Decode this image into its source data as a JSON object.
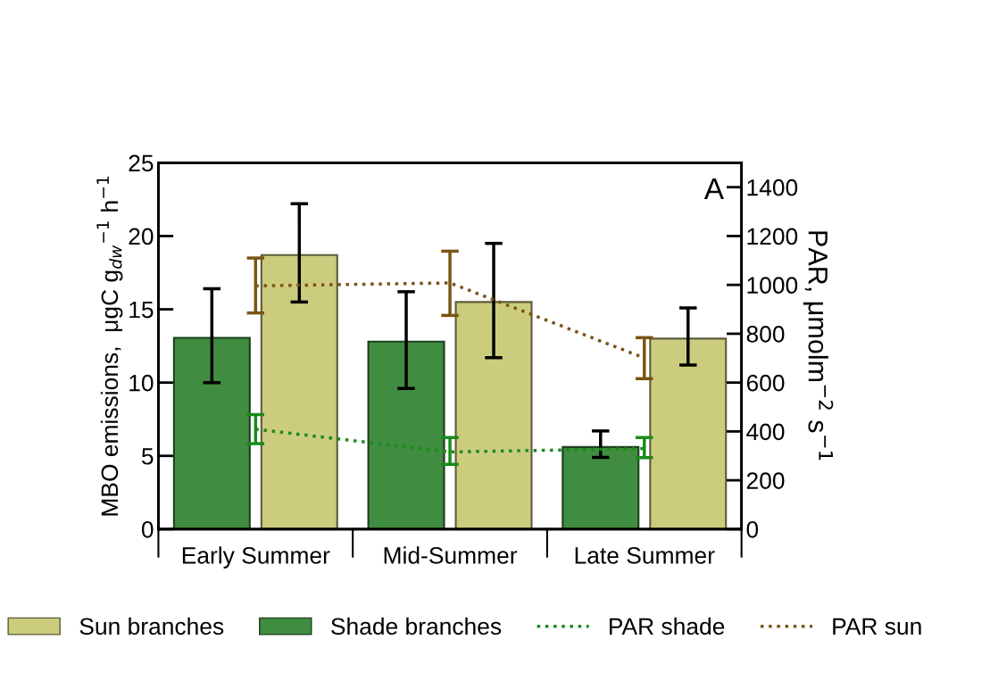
{
  "chart_data": {
    "type": "bar",
    "ylabel": "MBO emissions,  μgC g$_{dw}$$^{−1}$ h$^{−1}$",
    "y2label": "PAR, μmolm$^{−2}$ s$^{−1}$",
    "annotations": [
      "A"
    ],
    "categories": [
      "Early Summer",
      "Mid-Summer",
      "Late Summer"
    ],
    "ylim": [
      0,
      25
    ],
    "yticks": [
      0,
      5,
      10,
      15,
      20,
      25
    ],
    "y2lim": [
      0,
      1500
    ],
    "y2ticks": [
      0,
      200,
      400,
      600,
      800,
      1000,
      1200,
      1400
    ],
    "series": [
      {
        "name": "Sun branches",
        "color": "#cccc7f",
        "values": [
          18.7,
          15.5,
          13.0
        ],
        "errors": [
          [
            15.5,
            22.2
          ],
          [
            11.7,
            19.5
          ],
          [
            11.2,
            15.1
          ]
        ]
      },
      {
        "name": "Shade branches",
        "color": "#408c40",
        "values": [
          13.05,
          12.8,
          5.6
        ],
        "errors": [
          [
            10.0,
            16.4
          ],
          [
            9.6,
            16.2
          ],
          [
            4.9,
            6.7
          ]
        ]
      },
      {
        "name": "PAR shade",
        "type": "line",
        "axis": "y2",
        "color": "#1a8a1a",
        "line_style": "dotted",
        "values": [
          409,
          316,
          330
        ],
        "errors": [
          [
            350,
            469
          ],
          [
            265,
            375
          ],
          [
            293,
            375
          ]
        ]
      },
      {
        "name": "PAR sun",
        "type": "line",
        "axis": "y2",
        "color": "#7a5414",
        "line_style": "dotted",
        "values": [
          996,
          1008,
          701
        ],
        "errors": [
          [
            885,
            1110
          ],
          [
            875,
            1138
          ],
          [
            616,
            784
          ]
        ]
      }
    ],
    "grid": false,
    "legend": "bottom"
  }
}
